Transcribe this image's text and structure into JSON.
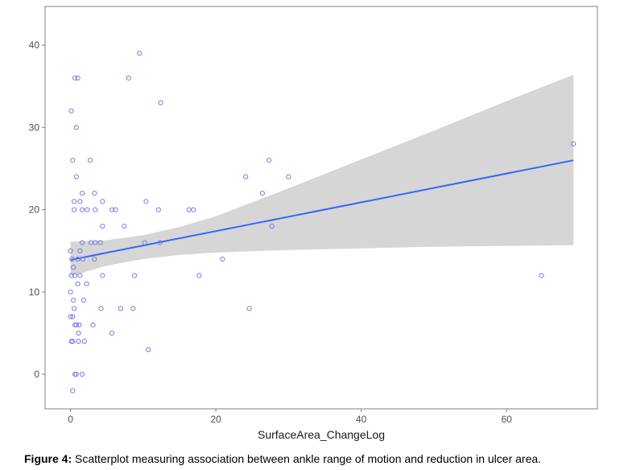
{
  "chart_data": {
    "type": "scatter",
    "title": "",
    "xlabel": "SurfaceArea_ChangeLog",
    "ylabel": "",
    "xlim": [
      -3.5,
      72.5
    ],
    "ylim": [
      -4.2,
      44.7
    ],
    "xticks": [
      0,
      20,
      40,
      60
    ],
    "yticks": [
      0,
      10,
      20,
      30,
      40
    ],
    "xtick_labels": [
      "0",
      "20",
      "40",
      "60"
    ],
    "ytick_labels": [
      "0",
      "10",
      "20",
      "30",
      "40"
    ],
    "grid": false,
    "legend": "none",
    "colors": {
      "points": "#7b7be0",
      "line": "#3366ff",
      "band": "#d6d6d6",
      "panel_border": "#7f7f7f"
    },
    "points": [
      {
        "x": 0.6,
        "y": 36
      },
      {
        "x": 1.0,
        "y": 36
      },
      {
        "x": 8.0,
        "y": 36
      },
      {
        "x": 9.5,
        "y": 39
      },
      {
        "x": 12.4,
        "y": 33
      },
      {
        "x": 0.1,
        "y": 32
      },
      {
        "x": 0.8,
        "y": 30
      },
      {
        "x": 0.3,
        "y": 26
      },
      {
        "x": 2.7,
        "y": 26
      },
      {
        "x": 0.8,
        "y": 24
      },
      {
        "x": 1.6,
        "y": 22
      },
      {
        "x": 3.3,
        "y": 22
      },
      {
        "x": 0.5,
        "y": 21
      },
      {
        "x": 1.3,
        "y": 21
      },
      {
        "x": 4.4,
        "y": 21
      },
      {
        "x": 10.4,
        "y": 21
      },
      {
        "x": 0.5,
        "y": 20
      },
      {
        "x": 1.6,
        "y": 20
      },
      {
        "x": 2.3,
        "y": 20
      },
      {
        "x": 3.4,
        "y": 20
      },
      {
        "x": 5.7,
        "y": 20
      },
      {
        "x": 6.2,
        "y": 20
      },
      {
        "x": 12.1,
        "y": 20
      },
      {
        "x": 16.3,
        "y": 20
      },
      {
        "x": 16.9,
        "y": 20
      },
      {
        "x": 4.4,
        "y": 18
      },
      {
        "x": 7.4,
        "y": 18
      },
      {
        "x": 27.7,
        "y": 18
      },
      {
        "x": 27.3,
        "y": 26
      },
      {
        "x": 24.1,
        "y": 24
      },
      {
        "x": 30.0,
        "y": 24
      },
      {
        "x": 26.4,
        "y": 22
      },
      {
        "x": 1.6,
        "y": 16
      },
      {
        "x": 2.8,
        "y": 16
      },
      {
        "x": 3.4,
        "y": 16
      },
      {
        "x": 4.1,
        "y": 16
      },
      {
        "x": 10.2,
        "y": 16
      },
      {
        "x": 12.3,
        "y": 16
      },
      {
        "x": 0.0,
        "y": 15
      },
      {
        "x": 1.3,
        "y": 15
      },
      {
        "x": 0.2,
        "y": 14
      },
      {
        "x": 1.0,
        "y": 14
      },
      {
        "x": 1.7,
        "y": 14
      },
      {
        "x": 3.3,
        "y": 14
      },
      {
        "x": 20.9,
        "y": 14
      },
      {
        "x": 0.4,
        "y": 13
      },
      {
        "x": 0.1,
        "y": 12
      },
      {
        "x": 0.6,
        "y": 12
      },
      {
        "x": 1.3,
        "y": 12
      },
      {
        "x": 4.4,
        "y": 12
      },
      {
        "x": 8.8,
        "y": 12
      },
      {
        "x": 17.7,
        "y": 12
      },
      {
        "x": 64.8,
        "y": 12
      },
      {
        "x": 1.0,
        "y": 11
      },
      {
        "x": 2.2,
        "y": 11
      },
      {
        "x": 0.0,
        "y": 10
      },
      {
        "x": 0.4,
        "y": 9
      },
      {
        "x": 1.8,
        "y": 9
      },
      {
        "x": 0.5,
        "y": 8
      },
      {
        "x": 4.2,
        "y": 8
      },
      {
        "x": 6.9,
        "y": 8
      },
      {
        "x": 8.6,
        "y": 8
      },
      {
        "x": 24.6,
        "y": 8
      },
      {
        "x": 0.0,
        "y": 7
      },
      {
        "x": 0.3,
        "y": 7
      },
      {
        "x": 0.6,
        "y": 6
      },
      {
        "x": 0.8,
        "y": 6
      },
      {
        "x": 1.2,
        "y": 6
      },
      {
        "x": 3.1,
        "y": 6
      },
      {
        "x": 1.1,
        "y": 5
      },
      {
        "x": 5.7,
        "y": 5
      },
      {
        "x": 0.1,
        "y": 4
      },
      {
        "x": 0.3,
        "y": 4
      },
      {
        "x": 1.1,
        "y": 4
      },
      {
        "x": 1.9,
        "y": 4
      },
      {
        "x": 10.7,
        "y": 3
      },
      {
        "x": 0.6,
        "y": 0
      },
      {
        "x": 0.8,
        "y": 0
      },
      {
        "x": 1.6,
        "y": 0
      },
      {
        "x": 0.3,
        "y": -2
      },
      {
        "x": 69.2,
        "y": 28
      }
    ],
    "fit_line": {
      "x": [
        0,
        69.2
      ],
      "y": [
        13.9,
        26.0
      ]
    },
    "confidence_band": {
      "x": [
        0,
        5,
        10,
        15,
        20,
        30,
        40,
        50,
        60,
        69.2
      ],
      "lower": [
        11.9,
        13.2,
        14.0,
        14.5,
        14.8,
        15.1,
        15.3,
        15.5,
        15.6,
        15.7
      ],
      "upper": [
        16.1,
        16.3,
        16.9,
        17.9,
        19.2,
        22.6,
        26.1,
        29.6,
        33.2,
        36.4
      ]
    }
  },
  "caption": {
    "label": "Figure 4:",
    "text": " Scatterplot measuring association between ankle range of motion and reduction in ulcer area."
  }
}
